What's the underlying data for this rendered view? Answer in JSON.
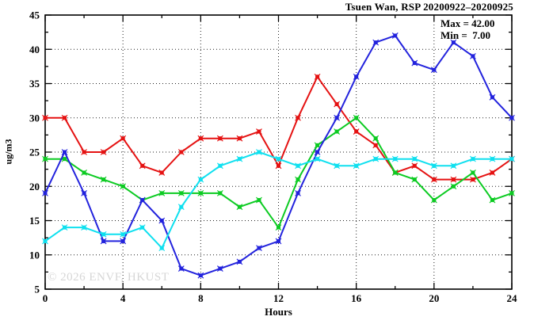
{
  "chart": {
    "title": "Tsuen Wan, RSP 20200922–20200925",
    "stats": {
      "max_line": "Max = 42.00",
      "min_line": "Min =  7.00"
    },
    "watermark": "© 2026 ENVF, HKUST"
  },
  "chart_data": {
    "type": "line",
    "title": "Tsuen Wan, RSP 20200922–20200925",
    "xlabel": "Hours",
    "ylabel": "ug/m3",
    "xlim": [
      0,
      24
    ],
    "ylim": [
      5,
      45
    ],
    "x_major_ticks": [
      0,
      4,
      8,
      12,
      16,
      20,
      24
    ],
    "x_minor_step": 2,
    "y_major_ticks": [
      5,
      10,
      15,
      20,
      25,
      30,
      35,
      40,
      45
    ],
    "y_minor_step": 2.5,
    "x_gridlines": [
      4,
      8,
      12,
      16,
      20
    ],
    "y_gridlines": [
      10,
      15,
      20,
      25,
      30,
      35,
      40
    ],
    "grid": true,
    "legend_position": "top-right-inside",
    "max": 42.0,
    "min": 7.0,
    "x": [
      0,
      1,
      2,
      3,
      4,
      5,
      6,
      7,
      8,
      9,
      10,
      11,
      12,
      13,
      14,
      15,
      16,
      17,
      18,
      19,
      20,
      21,
      22,
      23,
      24
    ],
    "series": [
      {
        "name": "red",
        "color": "#e51212",
        "values": [
          30,
          30,
          25,
          25,
          27,
          23,
          22,
          25,
          27,
          27,
          27,
          28,
          23,
          30,
          36,
          32,
          28,
          26,
          22,
          23,
          21,
          21,
          21,
          22,
          24
        ]
      },
      {
        "name": "green",
        "color": "#0ccb22",
        "values": [
          24,
          24,
          22,
          21,
          20,
          18,
          19,
          19,
          19,
          19,
          17,
          18,
          14,
          21,
          26,
          28,
          30,
          27,
          22,
          21,
          18,
          20,
          22,
          18,
          19
        ]
      },
      {
        "name": "blue",
        "color": "#2323dd",
        "values": [
          19,
          25,
          19,
          12,
          12,
          18,
          15,
          8,
          7,
          8,
          9,
          11,
          12,
          19,
          25,
          30,
          36,
          41,
          42,
          38,
          37,
          41,
          39,
          33,
          30
        ]
      },
      {
        "name": "cyan",
        "color": "#0fe0ef",
        "values": [
          12,
          14,
          14,
          13,
          13,
          14,
          11,
          17,
          21,
          23,
          24,
          25,
          24,
          23,
          24,
          23,
          23,
          24,
          24,
          24,
          23,
          23,
          24,
          24,
          24
        ]
      }
    ]
  }
}
